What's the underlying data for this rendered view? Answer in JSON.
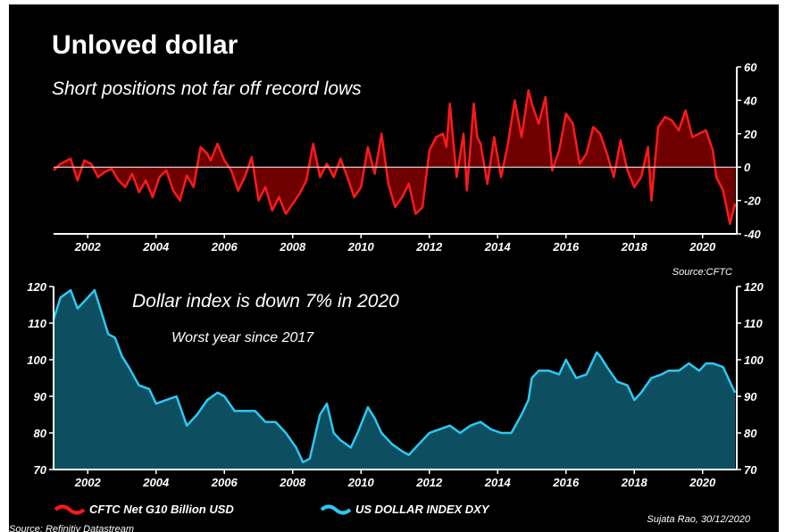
{
  "title": "Unloved dollar",
  "source_bottom": "Source: Refinitiv Datastream",
  "credit": "Sujata Rao, 30/12/2020",
  "colors": {
    "cftc": "#ff1a1a",
    "cftc_fill": "#6e0000",
    "dxy": "#2ec8f0",
    "dxy_fill": "#0d4f61",
    "background": "#000000"
  },
  "chart_data": [
    {
      "type": "area",
      "subtitle": "Short positions not far off record lows",
      "source": "Source:CFTC",
      "ylim": [
        -40,
        60
      ],
      "yticks": [
        -40,
        -20,
        0,
        20,
        40,
        60
      ],
      "xlim": [
        2001,
        2021
      ],
      "xticks": [
        2002,
        2004,
        2006,
        2008,
        2010,
        2012,
        2014,
        2016,
        2018,
        2020
      ],
      "series": [
        {
          "name": "CFTC Net G10 Billion USD",
          "x": [
            2001.0,
            2001.2,
            2001.5,
            2001.7,
            2001.9,
            2002.1,
            2002.3,
            2002.5,
            2002.7,
            2002.9,
            2003.1,
            2003.3,
            2003.5,
            2003.7,
            2003.9,
            2004.1,
            2004.3,
            2004.5,
            2004.7,
            2004.9,
            2005.1,
            2005.3,
            2005.5,
            2005.6,
            2005.8,
            2006.0,
            2006.2,
            2006.4,
            2006.6,
            2006.8,
            2007.0,
            2007.2,
            2007.4,
            2007.6,
            2007.8,
            2008.0,
            2008.2,
            2008.4,
            2008.6,
            2008.8,
            2009.0,
            2009.2,
            2009.4,
            2009.6,
            2009.8,
            2010.0,
            2010.2,
            2010.4,
            2010.6,
            2010.8,
            2011.0,
            2011.2,
            2011.4,
            2011.6,
            2011.8,
            2012.0,
            2012.2,
            2012.4,
            2012.5,
            2012.6,
            2012.8,
            2013.0,
            2013.1,
            2013.3,
            2013.4,
            2013.5,
            2013.7,
            2013.9,
            2014.1,
            2014.3,
            2014.5,
            2014.7,
            2014.9,
            2015.0,
            2015.2,
            2015.4,
            2015.6,
            2015.8,
            2016.0,
            2016.2,
            2016.4,
            2016.6,
            2016.8,
            2017.0,
            2017.2,
            2017.4,
            2017.6,
            2017.8,
            2018.0,
            2018.2,
            2018.4,
            2018.5,
            2018.7,
            2018.9,
            2019.1,
            2019.3,
            2019.5,
            2019.7,
            2019.9,
            2020.1,
            2020.3,
            2020.4,
            2020.6,
            2020.8,
            2020.95
          ],
          "values": [
            -2,
            2,
            5,
            -8,
            4,
            2,
            -6,
            -3,
            -1,
            -8,
            -12,
            -4,
            -15,
            -8,
            -18,
            -6,
            -2,
            -14,
            -20,
            -5,
            -12,
            12,
            8,
            4,
            14,
            4,
            -2,
            -14,
            -6,
            6,
            -20,
            -12,
            -26,
            -18,
            -28,
            -22,
            -16,
            -8,
            14,
            -6,
            2,
            -6,
            5,
            -6,
            -18,
            -12,
            12,
            -4,
            20,
            -10,
            -24,
            -18,
            -10,
            -28,
            -24,
            10,
            18,
            20,
            12,
            38,
            -6,
            20,
            -14,
            38,
            18,
            14,
            -10,
            18,
            -6,
            14,
            40,
            18,
            46,
            38,
            26,
            42,
            -2,
            10,
            32,
            26,
            2,
            8,
            24,
            20,
            8,
            -6,
            16,
            -2,
            -12,
            -6,
            12,
            -20,
            24,
            30,
            28,
            22,
            34,
            18,
            20,
            22,
            10,
            -6,
            -14,
            -34,
            -22
          ]
        }
      ]
    },
    {
      "type": "area",
      "title": "Dollar index is down 7% in 2020",
      "subtitle": "Worst year since 2017",
      "ylim": [
        70,
        120
      ],
      "yticks": [
        70,
        80,
        90,
        100,
        110,
        120
      ],
      "xlim": [
        2001,
        2021
      ],
      "xticks": [
        2002,
        2004,
        2006,
        2008,
        2010,
        2012,
        2014,
        2016,
        2018,
        2020
      ],
      "series": [
        {
          "name": "US DOLLAR INDEX DXY",
          "x": [
            2001.0,
            2001.2,
            2001.5,
            2001.7,
            2002.0,
            2002.2,
            2002.4,
            2002.6,
            2002.8,
            2003.0,
            2003.2,
            2003.5,
            2003.8,
            2004.0,
            2004.3,
            2004.6,
            2004.9,
            2005.2,
            2005.5,
            2005.8,
            2006.0,
            2006.3,
            2006.6,
            2006.9,
            2007.2,
            2007.5,
            2007.8,
            2008.1,
            2008.3,
            2008.5,
            2008.8,
            2009.0,
            2009.2,
            2009.4,
            2009.7,
            2009.9,
            2010.2,
            2010.4,
            2010.6,
            2010.9,
            2011.2,
            2011.4,
            2011.6,
            2011.8,
            2012.0,
            2012.3,
            2012.6,
            2012.9,
            2013.2,
            2013.5,
            2013.8,
            2014.1,
            2014.4,
            2014.7,
            2014.9,
            2015.0,
            2015.2,
            2015.5,
            2015.8,
            2016.0,
            2016.3,
            2016.6,
            2016.9,
            2017.0,
            2017.2,
            2017.5,
            2017.8,
            2018.0,
            2018.2,
            2018.5,
            2018.8,
            2019.0,
            2019.3,
            2019.6,
            2019.9,
            2020.1,
            2020.3,
            2020.6,
            2020.8,
            2020.95
          ],
          "values": [
            111,
            117,
            119,
            114,
            117,
            119,
            113,
            107,
            106,
            101,
            98,
            93,
            92,
            88,
            89,
            90,
            82,
            85,
            89,
            91,
            90,
            86,
            86,
            86,
            83,
            83,
            80,
            76,
            72,
            73,
            85,
            88,
            80,
            78,
            76,
            80,
            87,
            84,
            80,
            77,
            75,
            74,
            76,
            78,
            80,
            81,
            82,
            80,
            82,
            83,
            81,
            80,
            80,
            85,
            89,
            95,
            97,
            97,
            96,
            100,
            95,
            96,
            102,
            101,
            98,
            94,
            93,
            89,
            91,
            95,
            96,
            97,
            97,
            99,
            97,
            99,
            99,
            98,
            94,
            91
          ]
        }
      ]
    }
  ]
}
